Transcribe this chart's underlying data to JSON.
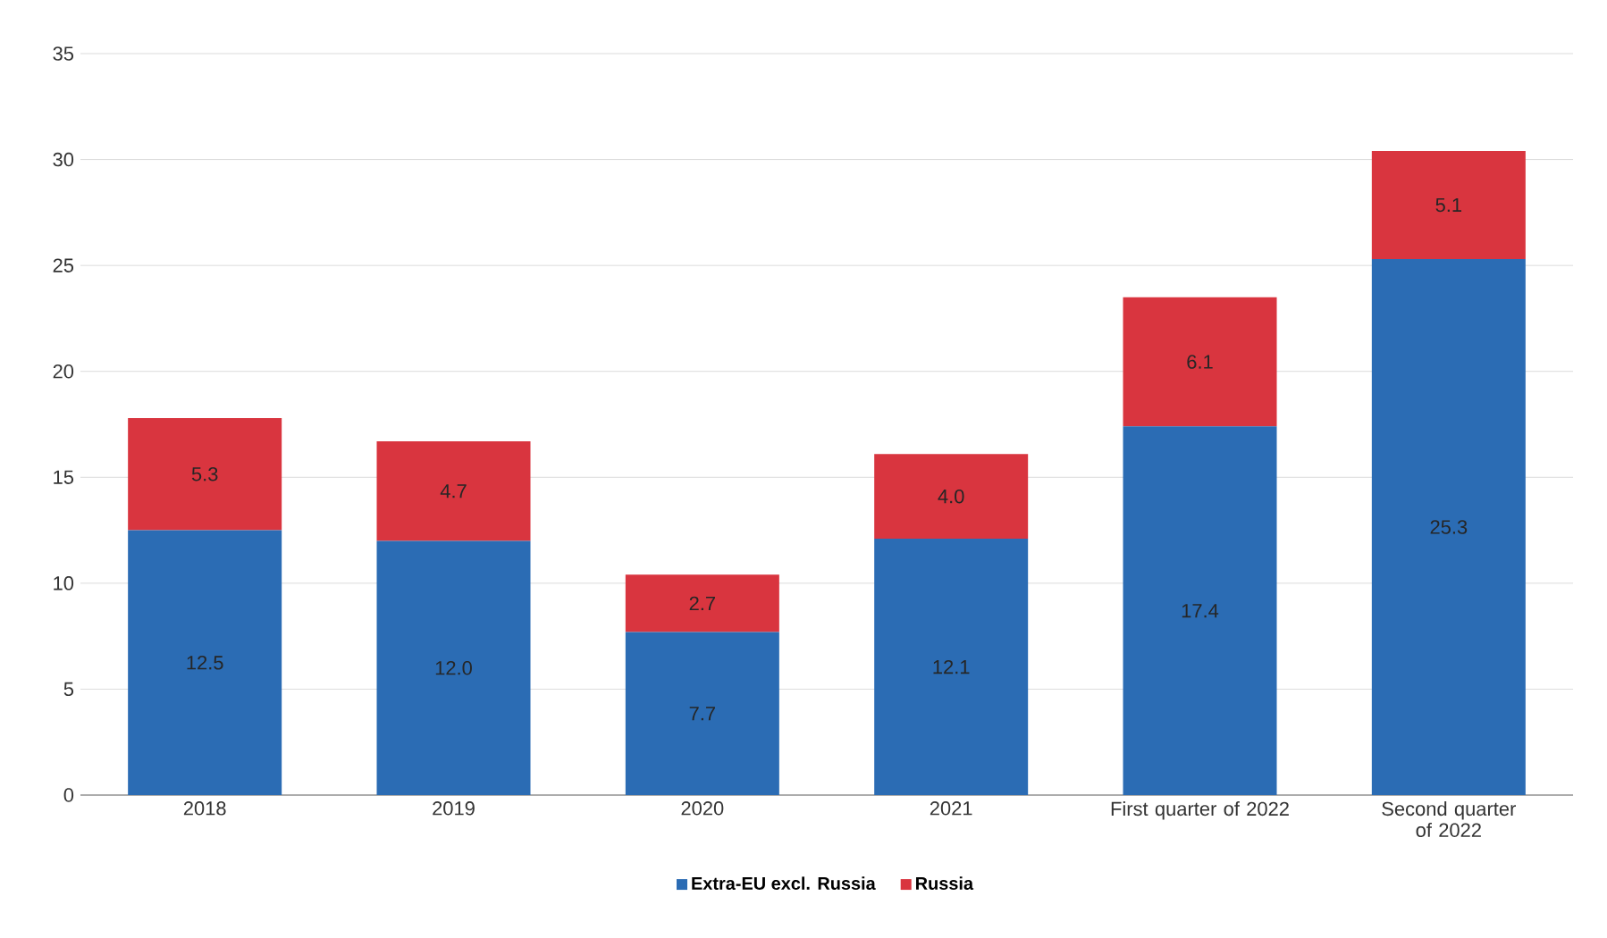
{
  "chart_data": {
    "type": "bar",
    "stacked": true,
    "categories": [
      "2018",
      "2019",
      "2020",
      "2021",
      "First quarter of 2022",
      "Second quarter of 2022"
    ],
    "series": [
      {
        "name": "Extra-EU excl. Russia",
        "color": "#2b6cb4",
        "values": [
          12.5,
          12.0,
          7.7,
          12.1,
          17.4,
          25.3
        ],
        "value_labels": [
          "12.5",
          "12.0",
          "7.7",
          "12.1",
          "17.4",
          "25.3"
        ]
      },
      {
        "name": "Russia",
        "color": "#d9353f",
        "values": [
          5.3,
          4.7,
          2.7,
          4.0,
          6.1,
          5.1
        ],
        "value_labels": [
          "5.3",
          "4.7",
          "2.7",
          "4.0",
          "6.1",
          "5.1"
        ]
      }
    ],
    "ylim": [
      0,
      35
    ],
    "yticks": [
      0,
      5,
      10,
      15,
      20,
      25,
      30,
      35
    ],
    "grid": "y",
    "legend": "bottom"
  }
}
